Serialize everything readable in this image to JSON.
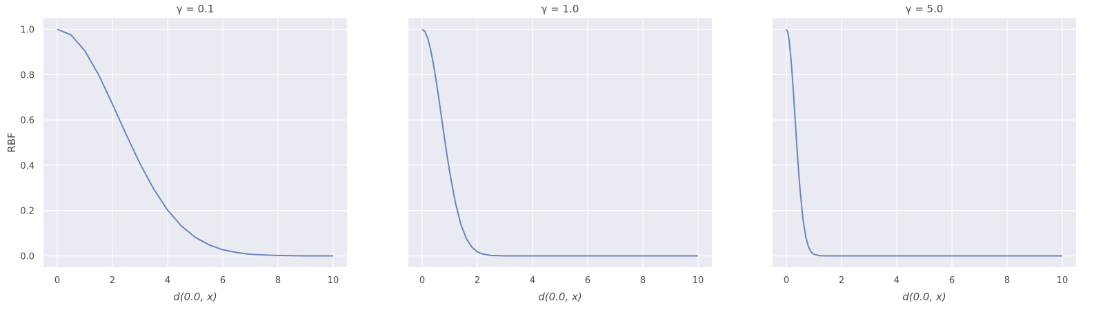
{
  "chart_data": [
    {
      "type": "line",
      "title": "γ = 0.1",
      "gamma": 0.1,
      "xlabel": "d(0.0, x)",
      "ylabel": "RBF",
      "xlim": [
        -0.5,
        10.5
      ],
      "ylim": [
        -0.05,
        1.05
      ],
      "xticks": [
        "0",
        "2",
        "4",
        "6",
        "8",
        "10"
      ],
      "yticks": [
        "0.0",
        "0.2",
        "0.4",
        "0.6",
        "0.8",
        "1.0"
      ],
      "grid": true,
      "series": [
        {
          "x": [
            0,
            0.5,
            1,
            1.5,
            2,
            2.5,
            3,
            3.5,
            4,
            4.5,
            5,
            5.5,
            6,
            6.5,
            7,
            7.5,
            8,
            8.5,
            9,
            9.5,
            10
          ],
          "y": [
            1.0,
            0.975,
            0.905,
            0.799,
            0.67,
            0.535,
            0.407,
            0.294,
            0.202,
            0.132,
            0.082,
            0.049,
            0.027,
            0.015,
            0.007,
            0.004,
            0.002,
            0.001,
            0.0,
            0.0,
            0.0
          ]
        }
      ]
    },
    {
      "type": "line",
      "title": "γ = 1.0",
      "gamma": 1.0,
      "xlabel": "d(0.0, x)",
      "ylabel": "",
      "xlim": [
        -0.5,
        10.5
      ],
      "ylim": [
        -0.05,
        1.05
      ],
      "xticks": [
        "0",
        "2",
        "4",
        "6",
        "8",
        "10"
      ],
      "yticks": [],
      "grid": true,
      "series": [
        {
          "x": [
            0,
            0.1,
            0.2,
            0.3,
            0.4,
            0.5,
            0.6,
            0.7,
            0.8,
            0.9,
            1.0,
            1.2,
            1.4,
            1.6,
            1.8,
            2.0,
            2.2,
            2.5,
            3,
            4,
            6,
            8,
            10
          ],
          "y": [
            1.0,
            0.99,
            0.961,
            0.914,
            0.852,
            0.779,
            0.698,
            0.613,
            0.527,
            0.445,
            0.368,
            0.237,
            0.141,
            0.077,
            0.039,
            0.018,
            0.008,
            0.002,
            0.0,
            0.0,
            0.0,
            0.0,
            0.0
          ]
        }
      ]
    },
    {
      "type": "line",
      "title": "γ = 5.0",
      "gamma": 5.0,
      "xlabel": "d(0.0, x)",
      "ylabel": "",
      "xlim": [
        -0.5,
        10.5
      ],
      "ylim": [
        -0.05,
        1.05
      ],
      "xticks": [
        "0",
        "2",
        "4",
        "6",
        "8",
        "10"
      ],
      "yticks": [],
      "grid": true,
      "series": [
        {
          "x": [
            0,
            0.05,
            0.1,
            0.15,
            0.2,
            0.25,
            0.3,
            0.35,
            0.4,
            0.45,
            0.5,
            0.6,
            0.7,
            0.8,
            0.9,
            1.0,
            1.2,
            1.5,
            2,
            4,
            6,
            8,
            10
          ],
          "y": [
            1.0,
            0.988,
            0.951,
            0.894,
            0.819,
            0.732,
            0.638,
            0.542,
            0.449,
            0.363,
            0.287,
            0.165,
            0.086,
            0.041,
            0.017,
            0.007,
            0.001,
            0.0,
            0.0,
            0.0,
            0.0,
            0.0,
            0.0
          ]
        }
      ]
    }
  ]
}
